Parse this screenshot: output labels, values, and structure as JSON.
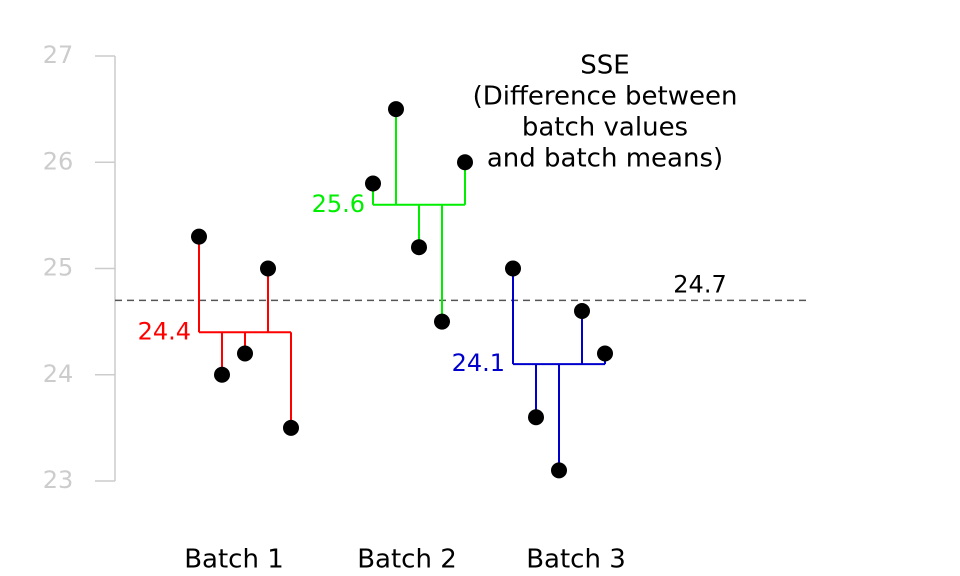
{
  "chart_data": {
    "type": "dot",
    "annotation": [
      "SSE",
      "(Difference between",
      "batch values",
      "and batch means)"
    ],
    "series": [
      {
        "name": "Batch 1",
        "color": "#ff0000",
        "values": [
          25.3,
          24.0,
          24.2,
          25.0,
          23.5
        ],
        "mean": 24.4
      },
      {
        "name": "Batch 2",
        "color": "#00ee00",
        "values": [
          25.8,
          26.5,
          25.2,
          24.5,
          26.0
        ],
        "mean": 25.6
      },
      {
        "name": "Batch 3",
        "color": "#0000cc",
        "values": [
          25.0,
          23.6,
          23.1,
          24.6,
          24.2
        ],
        "mean": 24.1
      }
    ],
    "reference_line": 24.7,
    "ylim": [
      23,
      27
    ],
    "yticks": [
      23,
      24,
      25,
      26,
      27
    ]
  }
}
